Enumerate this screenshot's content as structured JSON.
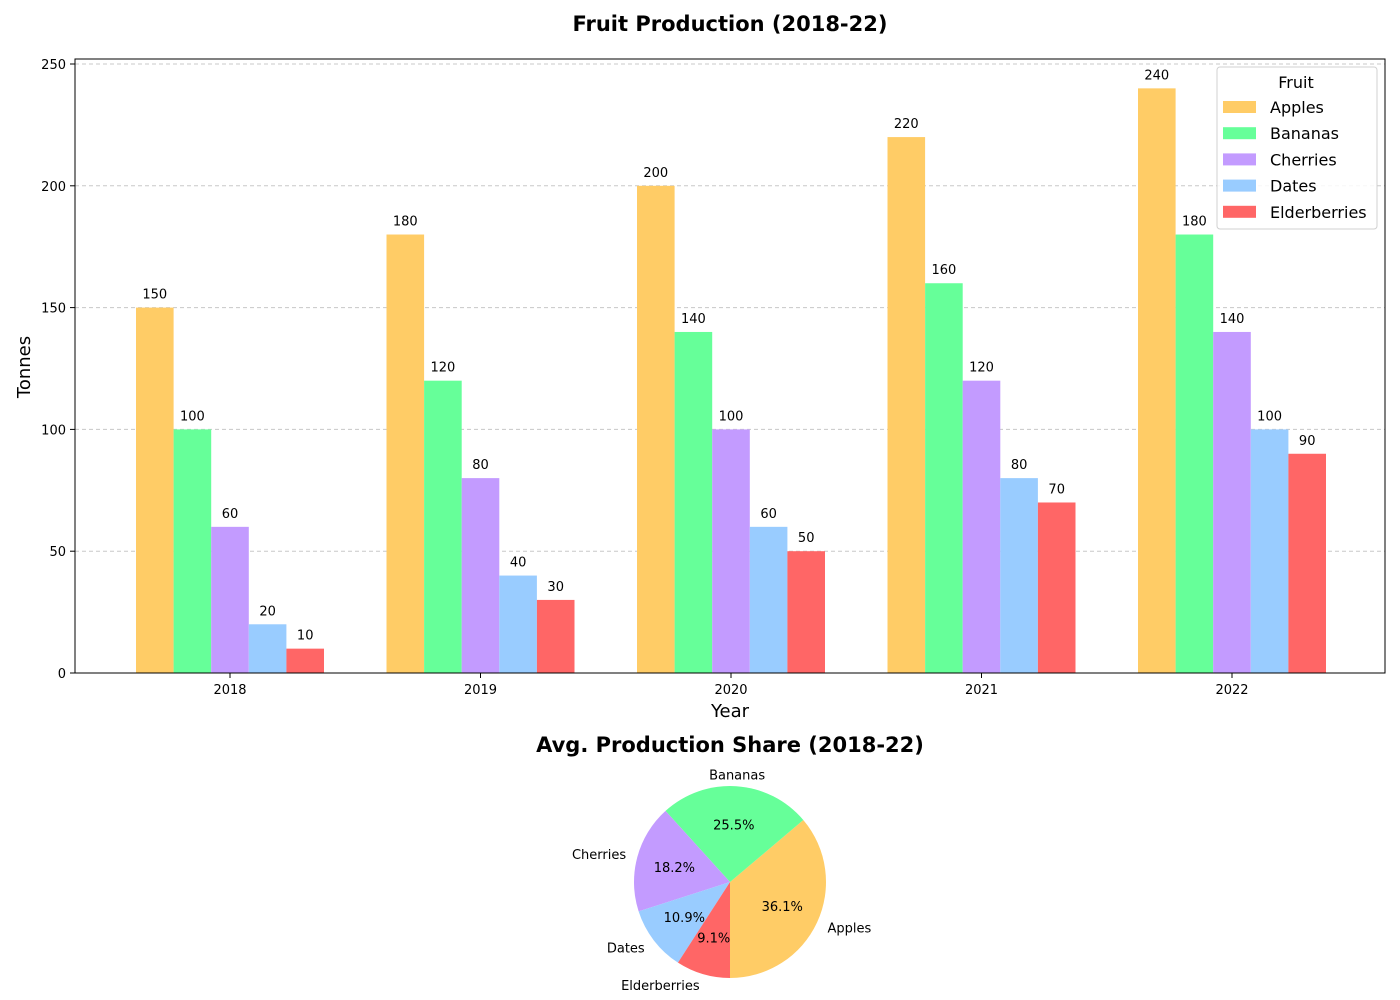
{
  "chart_data": [
    {
      "type": "bar",
      "title": "Fruit Production (2018-22)",
      "xlabel": "Year",
      "ylabel": "Tonnes",
      "categories": [
        "2018",
        "2019",
        "2020",
        "2021",
        "2022"
      ],
      "ylim": [
        0,
        250
      ],
      "yticks": [
        0,
        50,
        100,
        150,
        200,
        250
      ],
      "grid": "y-dashed",
      "legend": {
        "title": "Fruit",
        "placement": "top-right"
      },
      "series": [
        {
          "name": "Apples",
          "color": "#ffcc66",
          "values": [
            150,
            180,
            200,
            220,
            240
          ]
        },
        {
          "name": "Bananas",
          "color": "#66ff99",
          "values": [
            100,
            120,
            140,
            160,
            180
          ]
        },
        {
          "name": "Cherries",
          "color": "#c39bff",
          "values": [
            60,
            80,
            100,
            120,
            140
          ]
        },
        {
          "name": "Dates",
          "color": "#99ccff",
          "values": [
            20,
            40,
            60,
            80,
            100
          ]
        },
        {
          "name": "Elderberries",
          "color": "#ff6666",
          "values": [
            10,
            30,
            50,
            70,
            90
          ]
        }
      ]
    },
    {
      "type": "pie",
      "title": "Avg. Production Share (2018-22)",
      "slices": [
        {
          "label": "Apples",
          "color": "#ffcc66",
          "value": 36.1,
          "pct_label": "36.1%"
        },
        {
          "label": "Bananas",
          "color": "#66ff99",
          "value": 25.5,
          "pct_label": "25.5%"
        },
        {
          "label": "Cherries",
          "color": "#c39bff",
          "value": 18.2,
          "pct_label": "18.2%"
        },
        {
          "label": "Dates",
          "color": "#99ccff",
          "value": 10.9,
          "pct_label": "10.9%"
        },
        {
          "label": "Elderberries",
          "color": "#ff6666",
          "value": 9.1,
          "pct_label": "9.1%"
        }
      ]
    }
  ]
}
